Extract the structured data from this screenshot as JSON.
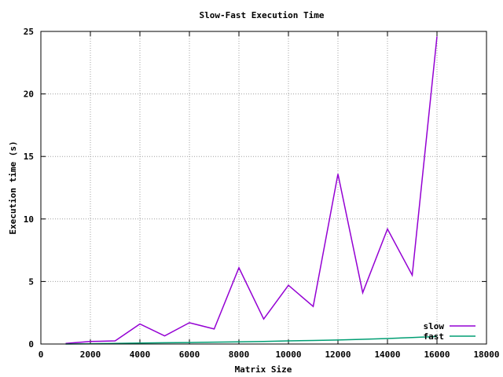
{
  "chart_data": {
    "type": "line",
    "title": "Slow-Fast Execution Time",
    "xlabel": "Matrix Size",
    "ylabel": "Execution time (s)",
    "xlim": [
      0,
      18000
    ],
    "ylim": [
      0,
      25
    ],
    "xticks": [
      0,
      2000,
      4000,
      6000,
      8000,
      10000,
      12000,
      14000,
      16000,
      18000
    ],
    "yticks": [
      0,
      5,
      10,
      15,
      20,
      25
    ],
    "grid": true,
    "legend_position": "bottom-right",
    "series": [
      {
        "name": "slow",
        "color": "#9400d3",
        "x": [
          1000,
          2000,
          3000,
          4000,
          5000,
          6000,
          7000,
          8000,
          9000,
          10000,
          11000,
          12000,
          13000,
          14000,
          15000,
          16000
        ],
        "y": [
          0.05,
          0.2,
          0.25,
          1.6,
          0.65,
          1.7,
          1.2,
          6.1,
          2.0,
          4.7,
          3.0,
          13.6,
          4.1,
          9.2,
          5.5,
          24.6
        ]
      },
      {
        "name": "fast",
        "color": "#009e73",
        "x": [
          1000,
          2000,
          3000,
          4000,
          5000,
          6000,
          7000,
          8000,
          9000,
          10000,
          11000,
          12000,
          13000,
          14000,
          15000,
          16000
        ],
        "y": [
          0.0,
          0.02,
          0.05,
          0.08,
          0.1,
          0.12,
          0.15,
          0.17,
          0.2,
          0.25,
          0.28,
          0.32,
          0.38,
          0.44,
          0.52,
          0.6
        ]
      }
    ]
  }
}
